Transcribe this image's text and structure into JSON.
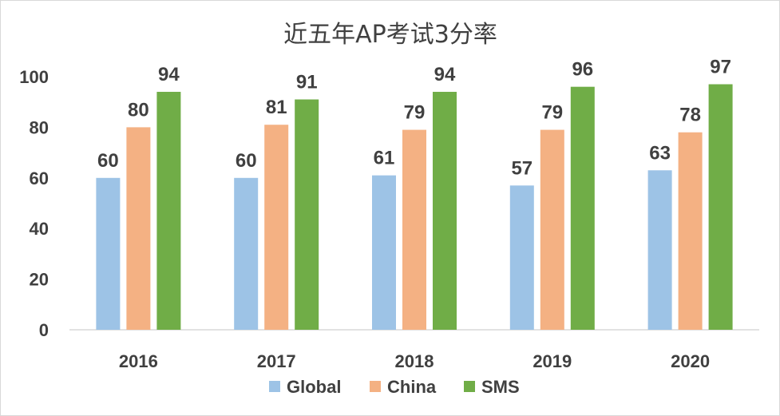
{
  "chart_data": {
    "type": "bar",
    "title": "近五年AP考试3分率",
    "categories": [
      "2016",
      "2017",
      "2018",
      "2019",
      "2020"
    ],
    "series": [
      {
        "name": "Global",
        "color": "#9dc3e6",
        "values": [
          60,
          60,
          61,
          57,
          63
        ]
      },
      {
        "name": "China",
        "color": "#f4b183",
        "values": [
          80,
          81,
          79,
          79,
          78
        ]
      },
      {
        "name": "SMS",
        "color": "#70ad47",
        "values": [
          94,
          91,
          94,
          96,
          97
        ]
      }
    ],
    "ylim": [
      0,
      100
    ],
    "yticks": [
      "0",
      "20",
      "40",
      "60",
      "80",
      "100"
    ],
    "grid": false,
    "legend_position": "bottom",
    "data_labels": true
  }
}
